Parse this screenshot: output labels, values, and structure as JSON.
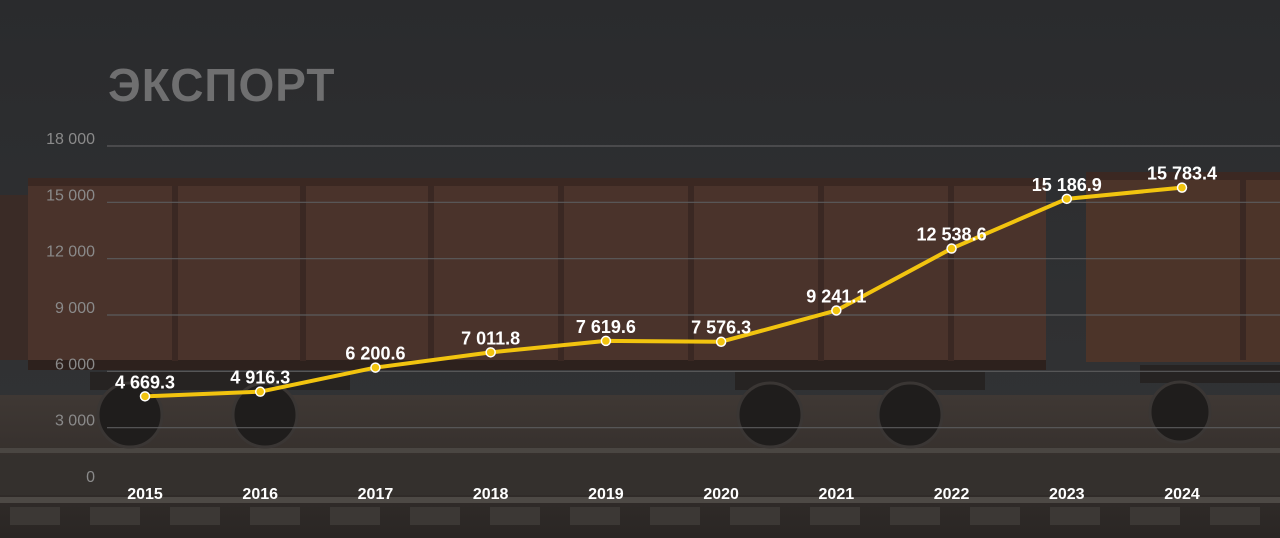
{
  "title": "ЭКСПОРТ",
  "colors": {
    "line": "#f2c40f",
    "background": "#2b2c2e",
    "grid": "#5b5b5d"
  },
  "chart_data": {
    "type": "line",
    "title": "ЭКСПОРТ",
    "categories": [
      "2015",
      "2016",
      "2017",
      "2018",
      "2019",
      "2020",
      "2021",
      "2022",
      "2023",
      "2024"
    ],
    "values": [
      4669.3,
      4916.3,
      6200.6,
      7011.8,
      7619.6,
      7576.3,
      9241.1,
      12538.6,
      15186.9,
      15783.4
    ],
    "value_labels": [
      "4 669.3",
      "4 916.3",
      "6 200.6",
      "7 011.8",
      "7 619.6",
      "7 576.3",
      "9 241.1",
      "12 538.6",
      "15 186.9",
      "15 783.4"
    ],
    "y_ticks": [
      0,
      3000,
      6000,
      9000,
      12000,
      15000,
      18000
    ],
    "y_tick_labels": [
      "0",
      "3 000",
      "6 000",
      "9 000",
      "12 000",
      "15 000",
      "18 000"
    ],
    "ylim": [
      0,
      18000
    ],
    "grid": true,
    "legend": "none"
  }
}
